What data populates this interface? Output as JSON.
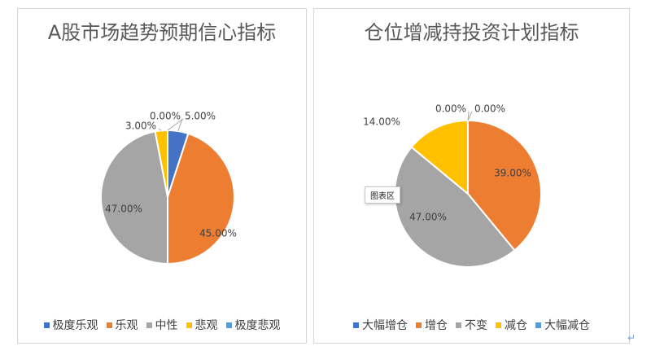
{
  "chart_data": [
    {
      "type": "pie",
      "title": "A股市场趋势预期信心指标",
      "categories": [
        "极度乐观",
        "乐观",
        "中性",
        "悲观",
        "极度悲观"
      ],
      "values": [
        5.0,
        45.0,
        47.0,
        3.0,
        0.0
      ],
      "data_labels": [
        "5.00%",
        "45.00%",
        "47.00%",
        "3.00%",
        "0.00%"
      ],
      "colors": [
        "#4472c4",
        "#ed7d31",
        "#a5a5a5",
        "#ffc000",
        "#5b9bd5"
      ],
      "legend_position": "bottom"
    },
    {
      "type": "pie",
      "title": "仓位增减持投资计划指标",
      "categories": [
        "大幅增仓",
        "增仓",
        "不变",
        "减仓",
        "大幅减仓"
      ],
      "values": [
        0.0,
        39.0,
        47.0,
        14.0,
        0.0
      ],
      "data_labels": [
        "0.00%",
        "39.00%",
        "47.00%",
        "14.00%",
        "0.00%"
      ],
      "colors": [
        "#4472c4",
        "#ed7d31",
        "#a5a5a5",
        "#ffc000",
        "#5b9bd5"
      ],
      "legend_position": "bottom"
    }
  ],
  "tooltip": "图表区",
  "return_mark": "↵"
}
